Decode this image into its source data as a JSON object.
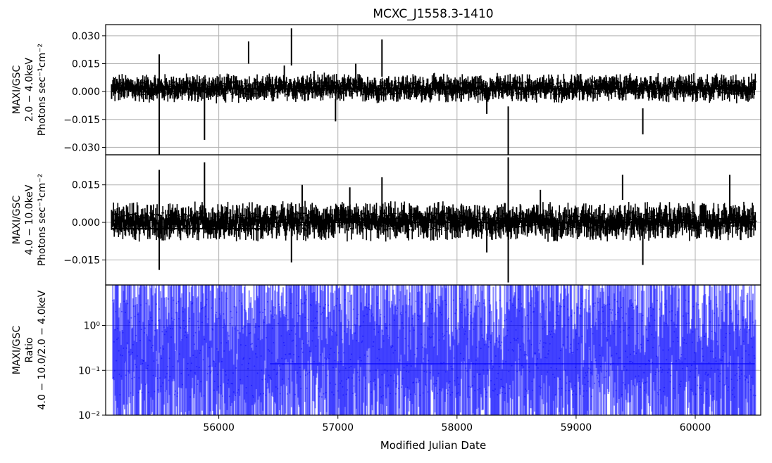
{
  "chart_data": {
    "type": "line",
    "title": "MCXC_J1558.3-1410",
    "xlabel": "Modified Julian Date",
    "xlim": [
      55050,
      60550
    ],
    "x_ticks": [
      56000,
      57000,
      58000,
      59000,
      60000
    ],
    "x_tick_labels": [
      "56000",
      "57000",
      "58000",
      "59000",
      "60000"
    ],
    "grid": true,
    "panels": [
      {
        "ylabel_lines": [
          "MAXI/GSC",
          "2.0 − 4.0keV",
          "Photons sec⁻¹cm⁻²"
        ],
        "ylim": [
          -0.034,
          0.036
        ],
        "y_ticks": [
          0.03,
          0.015,
          0.0,
          -0.015,
          -0.03
        ],
        "y_tick_labels": [
          "0.030",
          "0.015",
          "0.000",
          "−0.015",
          "−0.030"
        ],
        "color": "#000000",
        "series": [
          {
            "points": [
              [
                55100,
                0.0,
                0.004
              ],
              [
                55200,
                0.001,
                0.004
              ],
              [
                55300,
                -0.001,
                0.004
              ],
              [
                55400,
                0.002,
                0.004
              ],
              [
                55500,
                -0.008,
                0.028
              ],
              [
                55600,
                0.002,
                0.004
              ],
              [
                55700,
                0.003,
                0.004
              ],
              [
                55800,
                0.0,
                0.005
              ],
              [
                55880,
                -0.01,
                0.016
              ],
              [
                55950,
                0.001,
                0.004
              ],
              [
                56050,
                -0.001,
                0.004
              ],
              [
                56150,
                0.002,
                0.004
              ],
              [
                56250,
                0.021,
                0.006
              ],
              [
                56350,
                0.001,
                0.004
              ],
              [
                56450,
                0.004,
                0.004
              ],
              [
                56550,
                0.01,
                0.004
              ],
              [
                56610,
                0.024,
                0.01
              ],
              [
                56700,
                0.004,
                0.004
              ],
              [
                56800,
                0.006,
                0.005
              ],
              [
                56900,
                0.002,
                0.004
              ],
              [
                56980,
                -0.01,
                0.006
              ],
              [
                57050,
                0.003,
                0.004
              ],
              [
                57150,
                0.01,
                0.005
              ],
              [
                57250,
                0.004,
                0.004
              ],
              [
                57370,
                0.018,
                0.01
              ],
              [
                57450,
                0.002,
                0.004
              ],
              [
                57550,
                0.004,
                0.004
              ],
              [
                57650,
                0.001,
                0.004
              ],
              [
                57750,
                0.003,
                0.004
              ],
              [
                57850,
                0.0,
                0.005
              ],
              [
                57950,
                0.003,
                0.004
              ],
              [
                58050,
                0.002,
                0.004
              ],
              [
                58150,
                0.004,
                0.004
              ],
              [
                58250,
                -0.006,
                0.006
              ],
              [
                58350,
                0.003,
                0.004
              ],
              [
                58430,
                -0.022,
                0.014
              ],
              [
                58500,
                0.002,
                0.004
              ],
              [
                58600,
                0.003,
                0.004
              ],
              [
                58700,
                0.001,
                0.004
              ],
              [
                58800,
                0.004,
                0.004
              ],
              [
                58900,
                0.0,
                0.004
              ],
              [
                59000,
                0.002,
                0.004
              ],
              [
                59100,
                0.003,
                0.004
              ],
              [
                59200,
                0.001,
                0.004
              ],
              [
                59300,
                0.004,
                0.004
              ],
              [
                59400,
                0.002,
                0.004
              ],
              [
                59500,
                0.003,
                0.004
              ],
              [
                59560,
                -0.016,
                0.007
              ],
              [
                59650,
                0.002,
                0.004
              ],
              [
                59750,
                0.004,
                0.004
              ],
              [
                59850,
                0.003,
                0.004
              ],
              [
                59950,
                0.002,
                0.004
              ],
              [
                60050,
                0.004,
                0.004
              ],
              [
                60150,
                0.001,
                0.004
              ],
              [
                60250,
                0.003,
                0.004
              ],
              [
                60350,
                0.002,
                0.004
              ],
              [
                60450,
                0.004,
                0.004
              ]
            ]
          }
        ],
        "mean_line": 0.0015
      },
      {
        "ylabel_lines": [
          "MAXI/GSC",
          "4.0 − 10.0keV",
          "Photons sec⁻¹cm⁻²"
        ],
        "ylim": [
          -0.025,
          0.027
        ],
        "y_ticks": [
          0.015,
          0.0,
          -0.015
        ],
        "y_tick_labels": [
          "0.015",
          "0.000",
          "−0.015"
        ],
        "color": "#000000",
        "series": [
          {
            "points": [
              [
                55100,
                0.001,
                0.004
              ],
              [
                55200,
                0.002,
                0.004
              ],
              [
                55300,
                0.0,
                0.004
              ],
              [
                55400,
                0.003,
                0.004
              ],
              [
                55500,
                0.001,
                0.02
              ],
              [
                55600,
                0.001,
                0.004
              ],
              [
                55700,
                0.002,
                0.004
              ],
              [
                55800,
                0.0,
                0.004
              ],
              [
                55880,
                0.011,
                0.013
              ],
              [
                55950,
                0.002,
                0.004
              ],
              [
                56050,
                0.0,
                0.004
              ],
              [
                56150,
                0.003,
                0.004
              ],
              [
                56250,
                0.002,
                0.004
              ],
              [
                56350,
                0.001,
                0.004
              ],
              [
                56450,
                0.003,
                0.004
              ],
              [
                56550,
                0.002,
                0.004
              ],
              [
                56610,
                -0.004,
                0.012
              ],
              [
                56700,
                0.008,
                0.007
              ],
              [
                56800,
                0.002,
                0.004
              ],
              [
                56900,
                0.001,
                0.004
              ],
              [
                57000,
                0.002,
                0.004
              ],
              [
                57100,
                0.006,
                0.008
              ],
              [
                57200,
                0.001,
                0.004
              ],
              [
                57370,
                0.008,
                0.01
              ],
              [
                57450,
                0.002,
                0.004
              ],
              [
                57550,
                0.003,
                0.004
              ],
              [
                57650,
                0.001,
                0.004
              ],
              [
                57750,
                0.002,
                0.004
              ],
              [
                57850,
                0.0,
                0.004
              ],
              [
                57950,
                0.002,
                0.004
              ],
              [
                58050,
                0.001,
                0.004
              ],
              [
                58150,
                0.003,
                0.004
              ],
              [
                58250,
                -0.006,
                0.006
              ],
              [
                58350,
                0.002,
                0.004
              ],
              [
                58430,
                0.001,
                0.025
              ],
              [
                58500,
                0.002,
                0.004
              ],
              [
                58600,
                0.001,
                0.004
              ],
              [
                58700,
                0.006,
                0.007
              ],
              [
                58800,
                0.002,
                0.004
              ],
              [
                58900,
                0.001,
                0.004
              ],
              [
                59000,
                0.002,
                0.004
              ],
              [
                59100,
                0.001,
                0.004
              ],
              [
                59200,
                0.003,
                0.004
              ],
              [
                59300,
                0.001,
                0.004
              ],
              [
                59390,
                0.014,
                0.005
              ],
              [
                59480,
                0.002,
                0.004
              ],
              [
                59560,
                -0.009,
                0.008
              ],
              [
                59650,
                0.002,
                0.004
              ],
              [
                59750,
                0.003,
                0.004
              ],
              [
                59850,
                0.001,
                0.004
              ],
              [
                59950,
                0.002,
                0.004
              ],
              [
                60050,
                0.003,
                0.004
              ],
              [
                60150,
                0.001,
                0.004
              ],
              [
                60250,
                0.002,
                0.004
              ],
              [
                60290,
                0.009,
                0.01
              ],
              [
                60350,
                0.002,
                0.004
              ],
              [
                60450,
                0.001,
                0.004
              ]
            ]
          }
        ],
        "mean_line_segments": [
          {
            "x": [
              55100,
              56400
            ],
            "y": -0.0025
          },
          {
            "x": [
              56400,
              60500
            ],
            "y": 0.0
          }
        ]
      },
      {
        "ylabel_lines": [
          "MAXI/GSC",
          "Ratio",
          "4.0 − 10.0/2.0 − 4.0keV"
        ],
        "yscale": "log",
        "ylim": [
          0.01,
          8
        ],
        "y_ticks": [
          1,
          0.1,
          0.01
        ],
        "y_tick_labels": [
          "10⁰",
          "10⁻¹",
          "10⁻²"
        ],
        "color": "#0000ff",
        "gridline_y": [
          1.0,
          0.1
        ],
        "reference_lines": [
          {
            "x": [
              56430,
              60500
            ],
            "y": 0.14
          }
        ]
      }
    ]
  }
}
